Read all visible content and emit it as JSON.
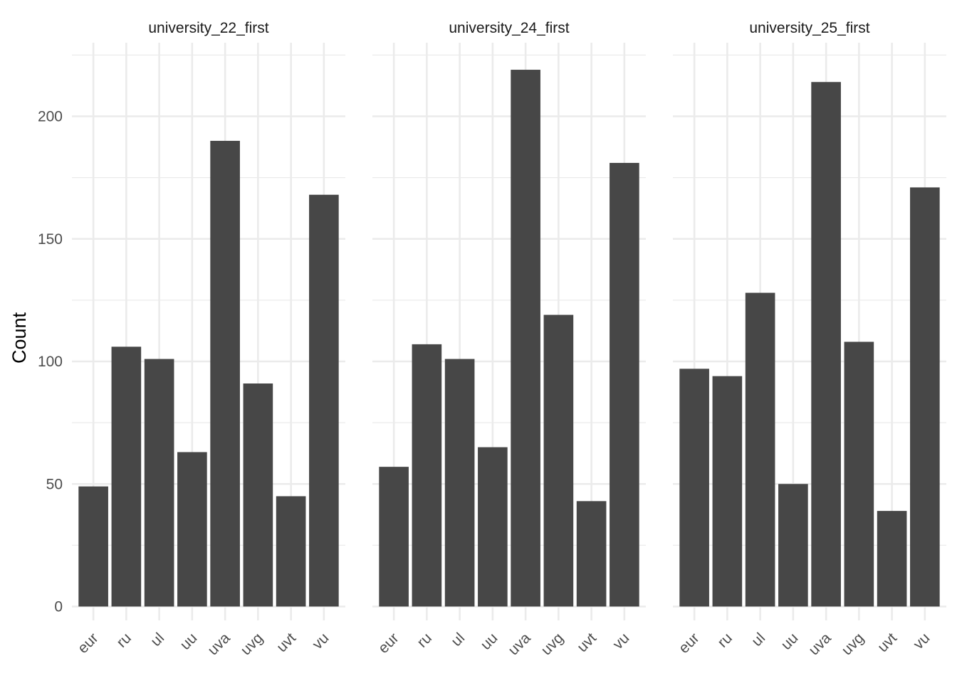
{
  "chart_data": {
    "type": "bar",
    "ylabel": "Count",
    "xlabel": "",
    "ylim": [
      0,
      230
    ],
    "yticks": [
      0,
      50,
      100,
      150,
      200
    ],
    "grid": true,
    "bar_color": "#474747",
    "categories": [
      "eur",
      "ru",
      "ul",
      "uu",
      "uva",
      "uvg",
      "uvt",
      "vu"
    ],
    "panels": [
      {
        "title": "university_22_first",
        "values": [
          49,
          106,
          101,
          63,
          190,
          91,
          45,
          168
        ]
      },
      {
        "title": "university_24_first",
        "values": [
          57,
          107,
          101,
          65,
          219,
          119,
          43,
          181
        ]
      },
      {
        "title": "university_25_first",
        "values": [
          97,
          94,
          128,
          50,
          214,
          108,
          39,
          171
        ]
      }
    ]
  }
}
